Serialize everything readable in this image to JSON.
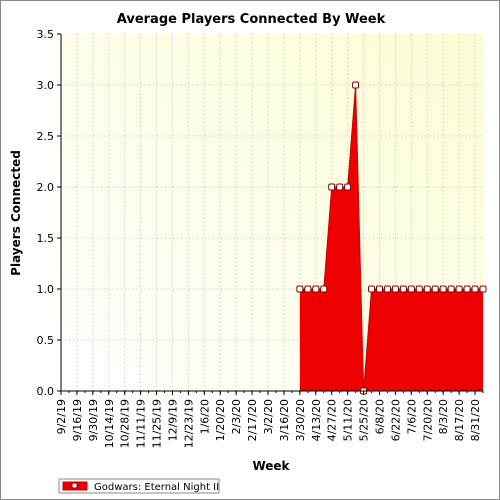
{
  "chart_data": {
    "type": "area",
    "title": "Average Players Connected By Week",
    "xlabel": "Week",
    "ylabel": "Players Connected",
    "ylim": [
      0,
      3.5
    ],
    "yticks": [
      "0.0",
      "0.5",
      "1.0",
      "1.5",
      "2.0",
      "2.5",
      "3.0",
      "3.5"
    ],
    "xtick_labels": [
      "9/2/19",
      "9/16/19",
      "9/30/19",
      "10/14/19",
      "10/28/19",
      "11/11/19",
      "11/25/19",
      "12/9/19",
      "12/23/19",
      "1/6/20",
      "1/20/20",
      "2/3/20",
      "2/17/20",
      "3/2/20",
      "3/16/20",
      "3/30/20",
      "4/13/20",
      "4/27/20",
      "5/11/20",
      "5/25/20",
      "6/8/20",
      "6/22/20",
      "7/6/20",
      "7/20/20",
      "8/3/20",
      "8/17/20",
      "8/31/20"
    ],
    "grid": true,
    "legend_position": "bottom-left",
    "colors": {
      "fill": "#ee0000",
      "line": "#cc0000",
      "marker_fill": "#ffffff",
      "marker_edge": "#800000",
      "plot_bg_top_right": "#fdfdd4",
      "plot_bg_bottom_left": "#ffffff"
    },
    "series": [
      {
        "name": "Godwars: Eternal Night II",
        "x": [
          "3/30/20",
          "4/6/20",
          "4/13/20",
          "4/20/20",
          "4/27/20",
          "5/4/20",
          "5/11/20",
          "5/18/20",
          "5/25/20",
          "6/1/20",
          "6/8/20",
          "6/15/20",
          "6/22/20",
          "6/29/20",
          "7/6/20",
          "7/13/20",
          "7/20/20",
          "7/27/20",
          "8/3/20",
          "8/10/20",
          "8/17/20",
          "8/24/20",
          "8/31/20",
          "9/7/20"
        ],
        "values": [
          1,
          1,
          1,
          1,
          2,
          2,
          2,
          3,
          0,
          1,
          1,
          1,
          1,
          1,
          1,
          1,
          1,
          1,
          1,
          1,
          1,
          1,
          1,
          1
        ]
      }
    ]
  }
}
